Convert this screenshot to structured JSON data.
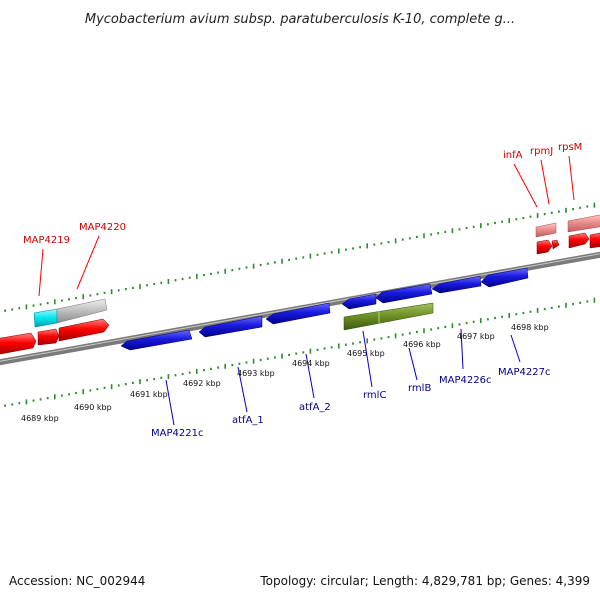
{
  "title": "Mycobacterium avium subsp. paratuberculosis K-10, complete g...",
  "footer": {
    "accession": "Accession: NC_002944",
    "summary": "Topology: circular; Length: 4,829,781 bp; Genes: 4,399"
  },
  "colors": {
    "forward_gene": "#ff0000",
    "forward_gene_faded": "#e88a8a",
    "reverse_gene": "#1010d8",
    "rna_gene": "#6b8e23",
    "highlight_gene": "#00e5ee",
    "pseudo_gene": "#bdbdbd",
    "backbone": "#7a7a7a",
    "tick": "#2e8b2e",
    "forward_label": "#cc0000",
    "reverse_label": "#00008b"
  },
  "scale": {
    "unit": "kbp",
    "ticks": [
      "4689 kbp",
      "4690 kbp",
      "4691 kbp",
      "4692 kbp",
      "4693 kbp",
      "4694 kbp",
      "4695 kbp",
      "4696 kbp",
      "4697 kbp",
      "4698 kbp"
    ]
  },
  "forward_labels": [
    "MAP4219",
    "MAP4220",
    "infA",
    "rpmJ",
    "rpsM"
  ],
  "reverse_labels": [
    "MAP4221c",
    "atfA_1",
    "atfA_2",
    "rmlC",
    "rmlB",
    "MAP4226c",
    "MAP4227c"
  ]
}
